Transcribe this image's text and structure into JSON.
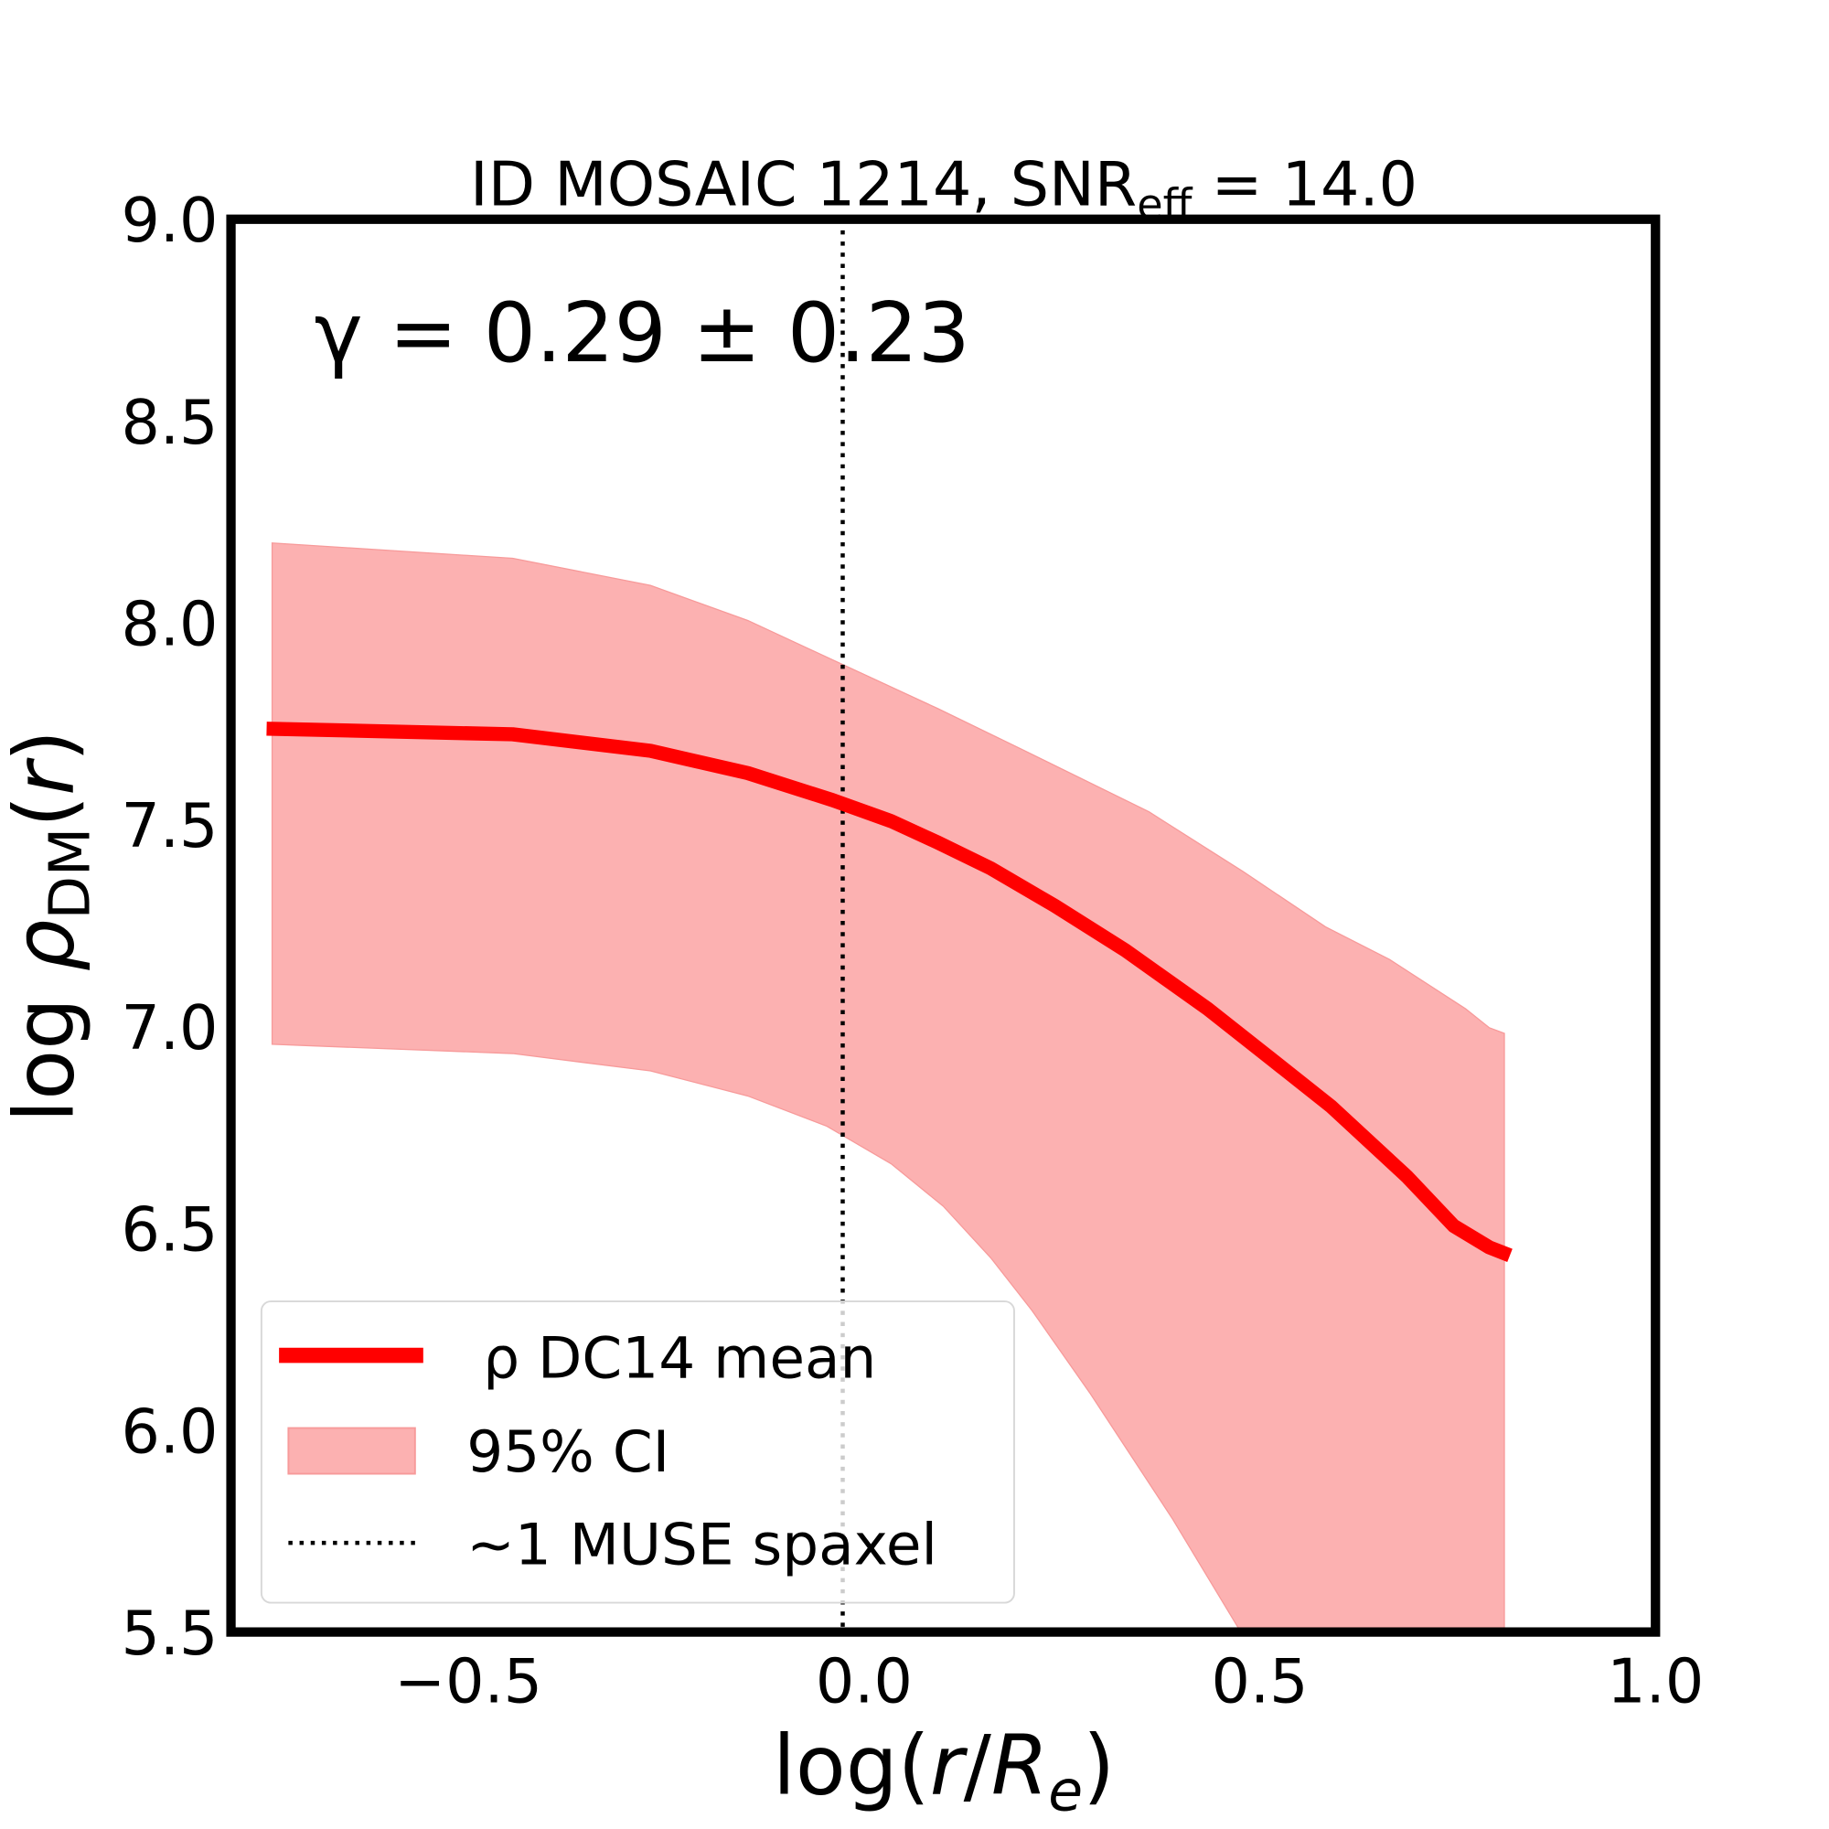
{
  "chart_data": {
    "type": "line",
    "title": {
      "main": "ID MOSAIC 1214, SNR",
      "sub": "eff",
      "tail": " = 14.0"
    },
    "xlabel": {
      "pre": "log(",
      "r": "r",
      "slash": "/",
      "R": "R",
      "sub": "e",
      "post": ")"
    },
    "ylabel": {
      "pre": "log ",
      "rho": "ρ",
      "sub": "DM",
      "post": "(",
      "r": "r",
      "close": ")"
    },
    "annotation": "γ = 0.29 ± 0.23",
    "xlim": [
      -0.8,
      1.0
    ],
    "ylim": [
      5.5,
      9.0
    ],
    "xticks": [
      {
        "v": -0.5,
        "label": "−0.5"
      },
      {
        "v": 0.0,
        "label": "0.0"
      },
      {
        "v": 0.5,
        "label": "0.5"
      },
      {
        "v": 1.0,
        "label": "1.0"
      }
    ],
    "yticks": [
      {
        "v": 5.5,
        "label": "5.5"
      },
      {
        "v": 6.0,
        "label": "6.0"
      },
      {
        "v": 6.5,
        "label": "6.5"
      },
      {
        "v": 7.0,
        "label": "7.0"
      },
      {
        "v": 7.5,
        "label": "7.5"
      },
      {
        "v": 8.0,
        "label": "8.0"
      },
      {
        "v": 8.5,
        "label": "8.5"
      },
      {
        "v": 9.0,
        "label": "9.0"
      }
    ],
    "grid": false,
    "legend_placement": "lower-left",
    "mean": {
      "name": "ρ DC14 mean",
      "color": "#ff0000",
      "x": [
        -0.755,
        -0.444,
        -0.27,
        -0.147,
        -0.04,
        0.034,
        0.093,
        0.16,
        0.241,
        0.33,
        0.434,
        0.515,
        0.59,
        0.686,
        0.745,
        0.79,
        0.816
      ],
      "y": [
        7.738,
        7.724,
        7.683,
        7.628,
        7.561,
        7.509,
        7.456,
        7.392,
        7.299,
        7.189,
        7.044,
        6.919,
        6.802,
        6.628,
        6.506,
        6.453,
        6.433
      ]
    },
    "ci": {
      "name": "95% CI",
      "color": "#fcb1b1",
      "upper_x": [
        -0.748,
        -0.444,
        -0.27,
        -0.147,
        -0.025,
        0.093,
        0.197,
        0.36,
        0.479,
        0.583,
        0.664,
        0.76,
        0.79,
        0.809
      ],
      "upper_y": [
        8.198,
        8.16,
        8.093,
        8.006,
        7.895,
        7.788,
        7.689,
        7.532,
        7.384,
        7.247,
        7.166,
        7.044,
        6.997,
        6.983
      ],
      "lower_x": [
        -0.748,
        -0.444,
        -0.27,
        -0.147,
        -0.047,
        0.034,
        0.1,
        0.16,
        0.212,
        0.286,
        0.39,
        0.476,
        0.6,
        0.809
      ],
      "lower_y": [
        6.956,
        6.933,
        6.89,
        6.828,
        6.753,
        6.66,
        6.555,
        6.427,
        6.297,
        6.09,
        5.779,
        5.5,
        5.2,
        4.9
      ]
    },
    "vline": {
      "name": "~1 MUSE spaxel",
      "x": -0.027,
      "color": "#000000"
    }
  }
}
